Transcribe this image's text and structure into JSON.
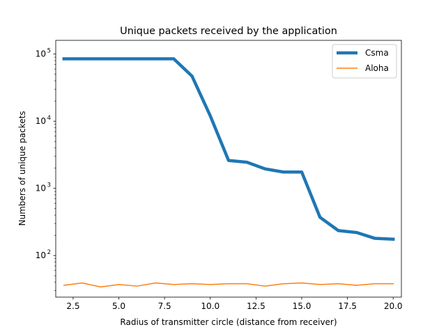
{
  "chart_data": {
    "type": "line",
    "title": "Unique packets received by the application",
    "xlabel": "Radius of transmitter circle (distance from receiver)",
    "ylabel": "Numbers of unique packets",
    "xlim": [
      1.55,
      20.45
    ],
    "ylim": [
      24,
      160000
    ],
    "yscale": "log",
    "grid": false,
    "legend_position": "top-right",
    "x_ticks": [
      2.5,
      5.0,
      7.5,
      10.0,
      12.5,
      15.0,
      17.5,
      20.0
    ],
    "x_tick_labels": [
      "2.5",
      "5.0",
      "7.5",
      "10.0",
      "12.5",
      "15.0",
      "17.5",
      "20.0"
    ],
    "y_ticks": [
      {
        "value": 100,
        "base": "10",
        "exp": "2"
      },
      {
        "value": 1000,
        "base": "10",
        "exp": "3"
      },
      {
        "value": 10000,
        "base": "10",
        "exp": "4"
      },
      {
        "value": 100000,
        "base": "10",
        "exp": "5"
      }
    ],
    "x": [
      2,
      3,
      4,
      5,
      6,
      7,
      8,
      9,
      10,
      11,
      12,
      13,
      14,
      15,
      16,
      17,
      18,
      19,
      20
    ],
    "series": [
      {
        "name": "Csma",
        "color": "#1f77b4",
        "line_weight": "thick",
        "values": [
          85000,
          85000,
          85000,
          85000,
          85000,
          85000,
          85000,
          47000,
          12000,
          2600,
          2450,
          1950,
          1750,
          1750,
          370,
          235,
          220,
          180,
          175
        ]
      },
      {
        "name": "Aloha",
        "color": "#ff7f0e",
        "line_weight": "normal",
        "values": [
          36,
          39,
          34,
          37,
          35,
          39,
          37,
          38,
          37,
          38,
          38,
          35,
          38,
          39,
          37,
          38,
          36,
          38,
          38
        ]
      }
    ]
  }
}
